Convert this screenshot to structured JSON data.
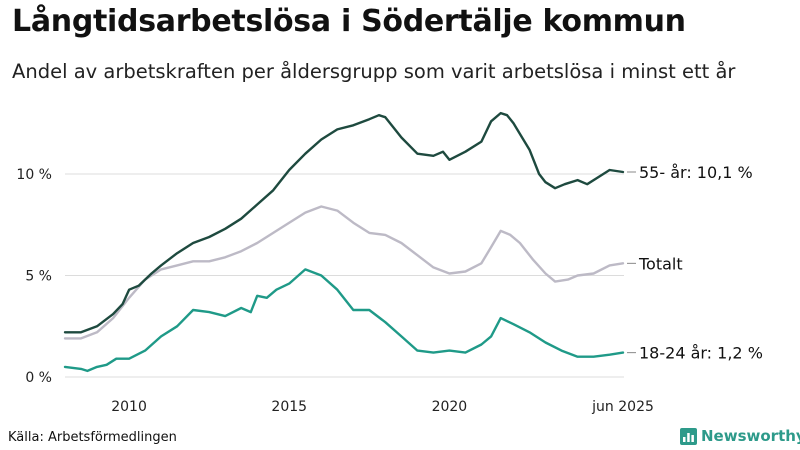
{
  "header": {
    "title": "Långtidsarbetslösa i Södertälje kommun",
    "subtitle": "Andel av arbetskraften per åldersgrupp som varit arbetslösa i minst ett år"
  },
  "footer": {
    "source": "Källa: Arbetsförmedlingen",
    "brand": "Newsworthy"
  },
  "colors": {
    "series_55": "#1e4a3f",
    "series_total": "#bdbac6",
    "series_1824": "#1f9a88",
    "grid": "#dcdcdc",
    "brand": "#2d9a8a"
  },
  "chart_data": {
    "type": "line",
    "title": "Långtidsarbetslösa i Södertälje kommun",
    "subtitle": "Andel av arbetskraften per åldersgrupp som varit arbetslösa i minst ett år",
    "xlabel": "",
    "ylabel": "",
    "xlim": [
      2008.0,
      2025.45
    ],
    "ylim": [
      0,
      13.5
    ],
    "x_ticks": [
      {
        "value": 2010,
        "label": "2010"
      },
      {
        "value": 2015,
        "label": "2015"
      },
      {
        "value": 2020,
        "label": "2020"
      },
      {
        "value": 2025.42,
        "label": "jun 2025"
      }
    ],
    "y_ticks": [
      {
        "value": 0,
        "label": "0 %"
      },
      {
        "value": 5,
        "label": "5 %"
      },
      {
        "value": 10,
        "label": "10 %"
      }
    ],
    "grid": "horizontal",
    "series": [
      {
        "key": "s55",
        "end_label": "55- år: 10,1 %",
        "points": [
          [
            2008.0,
            2.2
          ],
          [
            2008.5,
            2.2
          ],
          [
            2009.0,
            2.5
          ],
          [
            2009.5,
            3.1
          ],
          [
            2009.8,
            3.6
          ],
          [
            2010.0,
            4.3
          ],
          [
            2010.3,
            4.5
          ],
          [
            2010.7,
            5.1
          ],
          [
            2011.0,
            5.5
          ],
          [
            2011.5,
            6.1
          ],
          [
            2012.0,
            6.6
          ],
          [
            2012.5,
            6.9
          ],
          [
            2013.0,
            7.3
          ],
          [
            2013.5,
            7.8
          ],
          [
            2014.0,
            8.5
          ],
          [
            2014.5,
            9.2
          ],
          [
            2015.0,
            10.2
          ],
          [
            2015.5,
            11.0
          ],
          [
            2016.0,
            11.7
          ],
          [
            2016.5,
            12.2
          ],
          [
            2017.0,
            12.4
          ],
          [
            2017.5,
            12.7
          ],
          [
            2017.8,
            12.9
          ],
          [
            2018.0,
            12.8
          ],
          [
            2018.5,
            11.8
          ],
          [
            2019.0,
            11.0
          ],
          [
            2019.5,
            10.9
          ],
          [
            2019.8,
            11.1
          ],
          [
            2020.0,
            10.7
          ],
          [
            2020.5,
            11.1
          ],
          [
            2021.0,
            11.6
          ],
          [
            2021.3,
            12.6
          ],
          [
            2021.6,
            13.0
          ],
          [
            2021.8,
            12.9
          ],
          [
            2022.0,
            12.5
          ],
          [
            2022.5,
            11.2
          ],
          [
            2022.8,
            10.0
          ],
          [
            2023.0,
            9.6
          ],
          [
            2023.3,
            9.3
          ],
          [
            2023.6,
            9.5
          ],
          [
            2024.0,
            9.7
          ],
          [
            2024.3,
            9.5
          ],
          [
            2024.6,
            9.8
          ],
          [
            2025.0,
            10.2
          ],
          [
            2025.42,
            10.1
          ]
        ]
      },
      {
        "key": "total",
        "end_label": "Totalt",
        "points": [
          [
            2008.0,
            1.9
          ],
          [
            2008.5,
            1.9
          ],
          [
            2009.0,
            2.2
          ],
          [
            2009.5,
            2.9
          ],
          [
            2010.0,
            3.9
          ],
          [
            2010.5,
            4.8
          ],
          [
            2011.0,
            5.3
          ],
          [
            2011.5,
            5.5
          ],
          [
            2012.0,
            5.7
          ],
          [
            2012.5,
            5.7
          ],
          [
            2013.0,
            5.9
          ],
          [
            2013.5,
            6.2
          ],
          [
            2014.0,
            6.6
          ],
          [
            2014.5,
            7.1
          ],
          [
            2015.0,
            7.6
          ],
          [
            2015.5,
            8.1
          ],
          [
            2016.0,
            8.4
          ],
          [
            2016.5,
            8.2
          ],
          [
            2017.0,
            7.6
          ],
          [
            2017.5,
            7.1
          ],
          [
            2018.0,
            7.0
          ],
          [
            2018.5,
            6.6
          ],
          [
            2019.0,
            6.0
          ],
          [
            2019.5,
            5.4
          ],
          [
            2020.0,
            5.1
          ],
          [
            2020.5,
            5.2
          ],
          [
            2021.0,
            5.6
          ],
          [
            2021.3,
            6.4
          ],
          [
            2021.6,
            7.2
          ],
          [
            2021.9,
            7.0
          ],
          [
            2022.2,
            6.6
          ],
          [
            2022.6,
            5.8
          ],
          [
            2023.0,
            5.1
          ],
          [
            2023.3,
            4.7
          ],
          [
            2023.7,
            4.8
          ],
          [
            2024.0,
            5.0
          ],
          [
            2024.5,
            5.1
          ],
          [
            2025.0,
            5.5
          ],
          [
            2025.42,
            5.6
          ]
        ]
      },
      {
        "key": "s1824",
        "end_label": "18-24 år:  1,2 %",
        "points": [
          [
            2008.0,
            0.5
          ],
          [
            2008.5,
            0.4
          ],
          [
            2008.7,
            0.3
          ],
          [
            2009.0,
            0.5
          ],
          [
            2009.3,
            0.6
          ],
          [
            2009.6,
            0.9
          ],
          [
            2010.0,
            0.9
          ],
          [
            2010.5,
            1.3
          ],
          [
            2011.0,
            2.0
          ],
          [
            2011.5,
            2.5
          ],
          [
            2012.0,
            3.3
          ],
          [
            2012.5,
            3.2
          ],
          [
            2013.0,
            3.0
          ],
          [
            2013.5,
            3.4
          ],
          [
            2013.8,
            3.2
          ],
          [
            2014.0,
            4.0
          ],
          [
            2014.3,
            3.9
          ],
          [
            2014.6,
            4.3
          ],
          [
            2015.0,
            4.6
          ],
          [
            2015.5,
            5.3
          ],
          [
            2016.0,
            5.0
          ],
          [
            2016.5,
            4.3
          ],
          [
            2017.0,
            3.3
          ],
          [
            2017.5,
            3.3
          ],
          [
            2018.0,
            2.7
          ],
          [
            2018.5,
            2.0
          ],
          [
            2019.0,
            1.3
          ],
          [
            2019.5,
            1.2
          ],
          [
            2020.0,
            1.3
          ],
          [
            2020.5,
            1.2
          ],
          [
            2021.0,
            1.6
          ],
          [
            2021.3,
            2.0
          ],
          [
            2021.6,
            2.9
          ],
          [
            2022.0,
            2.6
          ],
          [
            2022.5,
            2.2
          ],
          [
            2023.0,
            1.7
          ],
          [
            2023.5,
            1.3
          ],
          [
            2024.0,
            1.0
          ],
          [
            2024.5,
            1.0
          ],
          [
            2025.0,
            1.1
          ],
          [
            2025.42,
            1.2
          ]
        ]
      }
    ]
  }
}
